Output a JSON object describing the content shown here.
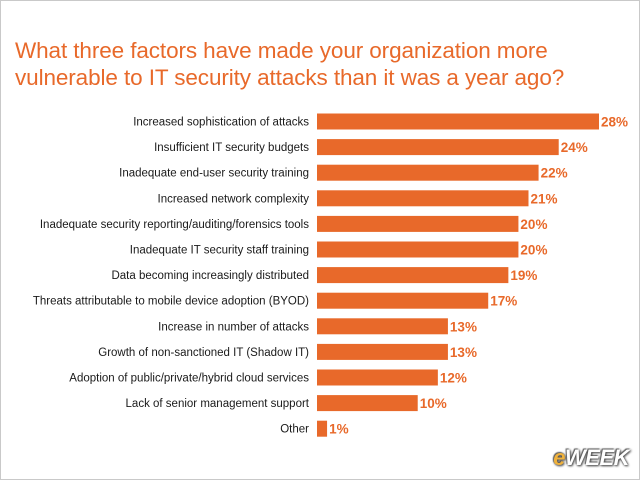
{
  "title": "What three factors have made your organization more vulnerable to IT security attacks than it was a year ago?",
  "watermark": {
    "prefix": "e",
    "suffix": "WEEK"
  },
  "chart_data": {
    "type": "bar",
    "orientation": "horizontal",
    "title": "What three factors have made your organization more vulnerable to IT security attacks than it was a year ago?",
    "categories": [
      "Increased sophistication of attacks",
      "Insufficient IT security budgets",
      "Inadequate end-user security training",
      "Increased network complexity",
      "Inadequate security reporting/auditing/forensics tools",
      "Inadequate IT security staff training",
      "Data becoming increasingly distributed",
      "Threats attributable to mobile device adoption (BYOD)",
      "Increase in number of attacks",
      "Growth of non-sanctioned IT (Shadow IT)",
      "Adoption of public/private/hybrid cloud services",
      "Lack of senior management support",
      "Other"
    ],
    "values": [
      28,
      24,
      22,
      21,
      20,
      20,
      19,
      17,
      13,
      13,
      12,
      10,
      1
    ],
    "value_labels": [
      "28%",
      "24%",
      "22%",
      "21%",
      "20%",
      "20%",
      "19%",
      "17%",
      "13%",
      "13%",
      "12%",
      "10%",
      "1%"
    ],
    "xlabel": "",
    "ylabel": "",
    "xlim": [
      0,
      28
    ],
    "grid": false,
    "legend": "none",
    "bar_color": "#e8692a"
  }
}
